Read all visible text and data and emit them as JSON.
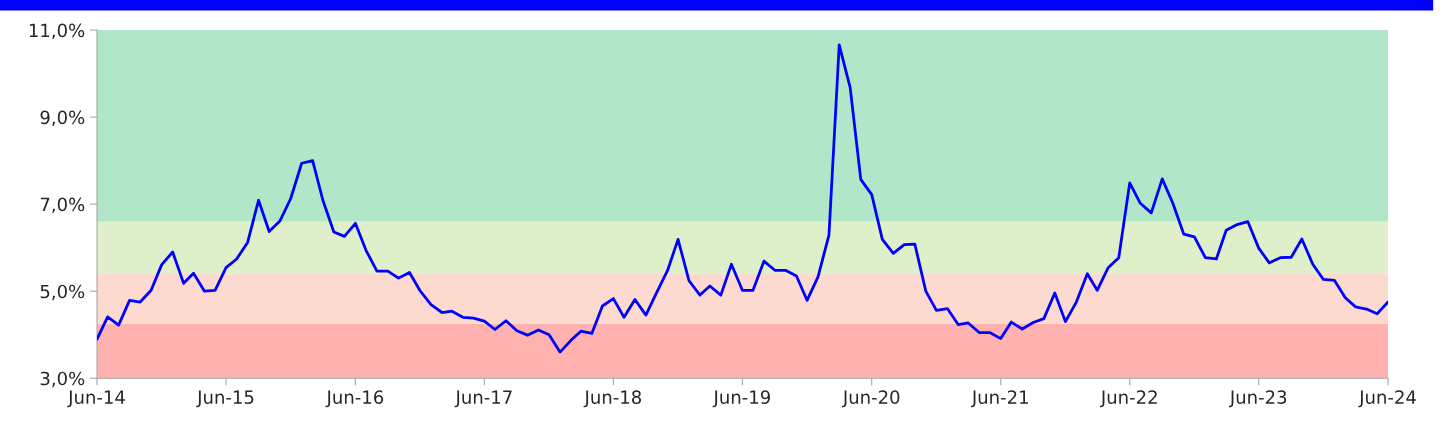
{
  "chart_data": {
    "type": "line",
    "x": [
      "2014-06",
      "2014-07",
      "2014-08",
      "2014-09",
      "2014-10",
      "2014-11",
      "2014-12",
      "2015-01",
      "2015-02",
      "2015-03",
      "2015-04",
      "2015-05",
      "2015-06",
      "2015-07",
      "2015-08",
      "2015-09",
      "2015-10",
      "2015-11",
      "2015-12",
      "2016-01",
      "2016-02",
      "2016-03",
      "2016-04",
      "2016-05",
      "2016-06",
      "2016-07",
      "2016-08",
      "2016-09",
      "2016-10",
      "2016-11",
      "2016-12",
      "2017-01",
      "2017-02",
      "2017-03",
      "2017-04",
      "2017-05",
      "2017-06",
      "2017-07",
      "2017-08",
      "2017-09",
      "2017-10",
      "2017-11",
      "2017-12",
      "2018-01",
      "2018-02",
      "2018-03",
      "2018-04",
      "2018-05",
      "2018-06",
      "2018-07",
      "2018-08",
      "2018-09",
      "2018-10",
      "2018-11",
      "2018-12",
      "2019-01",
      "2019-02",
      "2019-03",
      "2019-04",
      "2019-05",
      "2019-06",
      "2019-07",
      "2019-08",
      "2019-09",
      "2019-10",
      "2019-11",
      "2019-12",
      "2020-01",
      "2020-02",
      "2020-03",
      "2020-04",
      "2020-05",
      "2020-06",
      "2020-07",
      "2020-08",
      "2020-09",
      "2020-10",
      "2020-11",
      "2020-12",
      "2021-01",
      "2021-02",
      "2021-03",
      "2021-04",
      "2021-05",
      "2021-06",
      "2021-07",
      "2021-08",
      "2021-09",
      "2021-10",
      "2021-11",
      "2021-12",
      "2022-01",
      "2022-02",
      "2022-03",
      "2022-04",
      "2022-05",
      "2022-06",
      "2022-07",
      "2022-08",
      "2022-09",
      "2022-10",
      "2022-11",
      "2022-12",
      "2023-01",
      "2023-02",
      "2023-03",
      "2023-04",
      "2023-05",
      "2023-06",
      "2023-07",
      "2023-08",
      "2023-09",
      "2023-10",
      "2023-11",
      "2023-12",
      "2024-01",
      "2024-02",
      "2024-03",
      "2024-04",
      "2024-05",
      "2024-06"
    ],
    "series": [
      {
        "color": "#0000ff",
        "values": [
          3.9,
          4.41,
          4.22,
          4.79,
          4.75,
          5.02,
          5.61,
          5.9,
          5.18,
          5.41,
          5.0,
          5.02,
          5.54,
          5.74,
          6.12,
          7.09,
          6.37,
          6.62,
          7.13,
          7.94,
          8.0,
          7.09,
          6.36,
          6.26,
          6.56,
          5.94,
          5.46,
          5.46,
          5.3,
          5.43,
          5.01,
          4.69,
          4.51,
          4.54,
          4.4,
          4.38,
          4.31,
          4.12,
          4.32,
          4.09,
          3.99,
          4.11,
          4.0,
          3.6,
          3.87,
          4.08,
          4.03,
          4.66,
          4.83,
          4.4,
          4.81,
          4.45,
          4.96,
          5.47,
          6.19,
          5.24,
          4.91,
          5.12,
          4.91,
          5.62,
          5.02,
          5.02,
          5.69,
          5.48,
          5.48,
          5.35,
          4.79,
          5.33,
          6.29,
          10.66,
          9.68,
          7.57,
          7.22,
          6.19,
          5.87,
          6.07,
          6.08,
          5.0,
          4.56,
          4.6,
          4.23,
          4.27,
          4.05,
          4.05,
          3.91,
          4.29,
          4.13,
          4.28,
          4.37,
          4.96,
          4.3,
          4.75,
          5.4,
          5.02,
          5.54,
          5.77,
          7.49,
          7.02,
          6.8,
          7.58,
          7.02,
          6.31,
          6.25,
          5.77,
          5.74,
          6.4,
          6.53,
          6.6,
          5.99,
          5.65,
          5.77,
          5.78,
          6.2,
          5.62,
          5.27,
          5.25,
          4.85,
          4.64,
          4.59,
          4.48,
          4.75
        ]
      }
    ],
    "xlim": [
      "2014-06",
      "2024-06"
    ],
    "xticks": [
      {
        "value": "2014-06",
        "label": "Jun-14"
      },
      {
        "value": "2015-06",
        "label": "Jun-15"
      },
      {
        "value": "2016-06",
        "label": "Jun-16"
      },
      {
        "value": "2017-06",
        "label": "Jun-17"
      },
      {
        "value": "2018-06",
        "label": "Jun-18"
      },
      {
        "value": "2019-06",
        "label": "Jun-19"
      },
      {
        "value": "2020-06",
        "label": "Jun-20"
      },
      {
        "value": "2021-06",
        "label": "Jun-21"
      },
      {
        "value": "2022-06",
        "label": "Jun-22"
      },
      {
        "value": "2023-06",
        "label": "Jun-23"
      },
      {
        "value": "2024-06",
        "label": "Jun-24"
      }
    ],
    "ylim": [
      3,
      11
    ],
    "yticks": [
      {
        "value": 3,
        "label": "3,0%"
      },
      {
        "value": 5,
        "label": "5,0%"
      },
      {
        "value": 7,
        "label": "7,0%"
      },
      {
        "value": 9,
        "label": "9,0%"
      },
      {
        "value": 11,
        "label": "11,0%"
      }
    ],
    "bands": [
      {
        "axis": "y",
        "from": 3,
        "to": 4.25,
        "color": "#ffb2b0"
      },
      {
        "axis": "y",
        "from": 4.25,
        "to": 5.4,
        "color": "#fddad0"
      },
      {
        "axis": "y",
        "from": 5.4,
        "to": 6.6,
        "color": "#deefc9"
      },
      {
        "axis": "y",
        "from": 6.6,
        "to": 11,
        "color": "#b2e6c9"
      }
    ],
    "grid": false,
    "legend": false,
    "marker": "none",
    "line_style": "solid"
  }
}
